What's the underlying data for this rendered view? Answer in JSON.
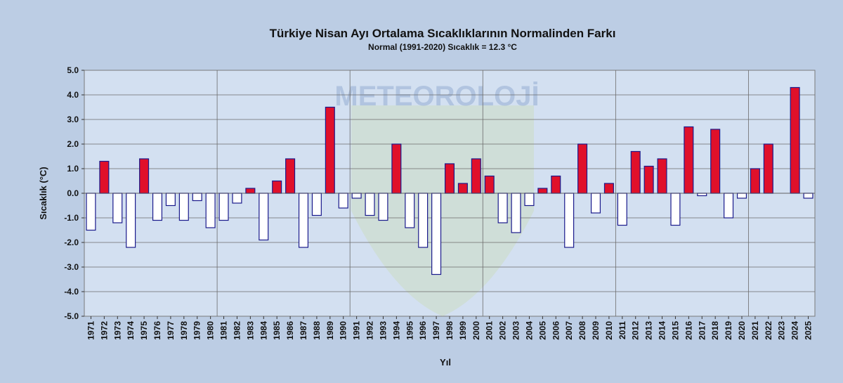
{
  "chart_data": {
    "type": "bar",
    "title": "Türkiye Nisan Ayı Ortalama Sıcaklıklarının Normalinden  Farkı",
    "subtitle": "Normal (1991-2020) Sıcaklık = 12.3 °C",
    "xlabel": "Yıl",
    "ylabel": "Sıcaklık (°C)",
    "ylim": [
      -5.0,
      5.0
    ],
    "y_ticks": [
      "5.0",
      "4.0",
      "3.0",
      "2.0",
      "1.0",
      "0.0",
      "-1.0",
      "-2.0",
      "-3.0",
      "-4.0",
      "-5.0"
    ],
    "grid": true,
    "positive_color": "#e0102a",
    "negative_color": "#ffffff",
    "bar_edge_color": "#1a1a8c",
    "plot_background": "#d3e0f1",
    "watermark_text": "METEOROLOJİ",
    "categories": [
      "1971",
      "1972",
      "1973",
      "1974",
      "1975",
      "1976",
      "1977",
      "1978",
      "1979",
      "1980",
      "1981",
      "1982",
      "1983",
      "1984",
      "1985",
      "1986",
      "1987",
      "1988",
      "1989",
      "1990",
      "1991",
      "1992",
      "1993",
      "1994",
      "1995",
      "1996",
      "1997",
      "1998",
      "1999",
      "2000",
      "2001",
      "2002",
      "2003",
      "2004",
      "2005",
      "2006",
      "2007",
      "2008",
      "2009",
      "2010",
      "2011",
      "2012",
      "2013",
      "2014",
      "2015",
      "2016",
      "2017",
      "2018",
      "2019",
      "2020",
      "2021",
      "2022",
      "2023",
      "2024",
      "2025"
    ],
    "values": [
      -1.5,
      1.3,
      -1.2,
      -2.2,
      1.4,
      -1.1,
      -0.5,
      -1.1,
      -0.3,
      -1.4,
      -1.1,
      -0.4,
      0.2,
      -1.9,
      0.5,
      1.4,
      -2.2,
      -0.9,
      3.5,
      -0.6,
      -0.2,
      -0.9,
      -1.1,
      2.0,
      -1.4,
      -2.2,
      -3.3,
      1.2,
      0.4,
      1.4,
      0.7,
      -1.2,
      -1.6,
      -0.5,
      0.2,
      0.7,
      -2.2,
      2.0,
      -0.8,
      0.4,
      -1.3,
      1.7,
      1.1,
      1.4,
      -1.3,
      2.7,
      -0.1,
      2.6,
      -1.0,
      -0.2,
      1.0,
      2.0,
      0.0,
      4.3,
      -0.2
    ]
  }
}
